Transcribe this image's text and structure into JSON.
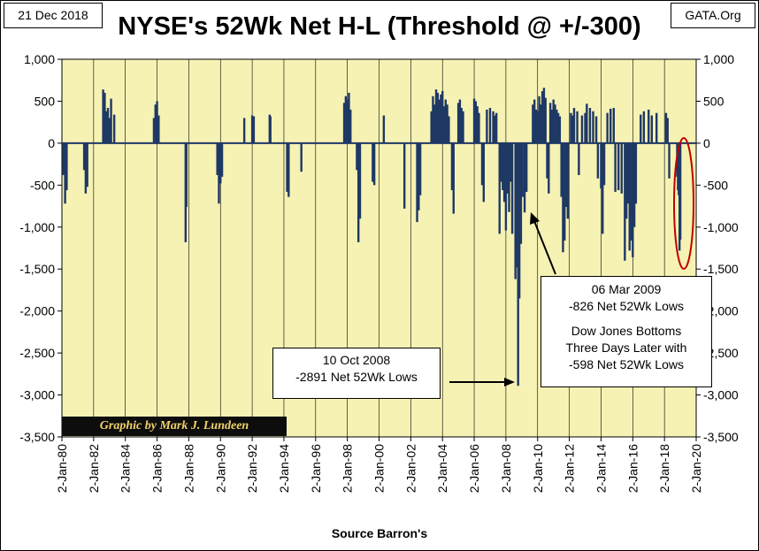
{
  "header": {
    "date": "21 Dec 2018",
    "source": "GATA.Org",
    "title": "NYSE's 52Wk Net H-L (Threshold @ +/-300)"
  },
  "credit": "Graphic by Mark J. Lundeen",
  "annotations": {
    "oct_2008": {
      "line1": "10 Oct 2008",
      "line2": "-2891 Net 52Wk Lows"
    },
    "mar_2009": {
      "line1": "06 Mar 2009",
      "line2": "-826 Net 52Wk Lows",
      "line3": "Dow Jones Bottoms",
      "line4": "Three Days Later with",
      "line5": "-598 Net 52Wk Lows"
    }
  },
  "colors": {
    "plot_bg": "#f6f2b4",
    "bar": "#1f3864",
    "highlight": "#c00000"
  },
  "chart_data": {
    "type": "bar",
    "title": "NYSE's 52Wk Net H-L (Threshold @ +/-300)",
    "xlabel": "Source Barron's",
    "ylabel": "",
    "xlim": [
      "2-Jan-80",
      "2-Jan-20"
    ],
    "ylim": [
      -3500,
      1000
    ],
    "grid": "vertical",
    "x_tick_labels": [
      "2-Jan-80",
      "2-Jan-82",
      "2-Jan-84",
      "2-Jan-86",
      "2-Jan-88",
      "2-Jan-90",
      "2-Jan-92",
      "2-Jan-94",
      "2-Jan-96",
      "2-Jan-98",
      "2-Jan-00",
      "2-Jan-02",
      "2-Jan-04",
      "2-Jan-06",
      "2-Jan-08",
      "2-Jan-10",
      "2-Jan-12",
      "2-Jan-14",
      "2-Jan-16",
      "2-Jan-18",
      "2-Jan-20"
    ],
    "y_tick_labels": [
      "1,000",
      "500",
      "0",
      "-500",
      "-1,000",
      "-1,500",
      "-2,000",
      "-2,500",
      "-3,000",
      "-3,500"
    ],
    "y_tick_values": [
      1000,
      500,
      0,
      -500,
      -1000,
      -1500,
      -2000,
      -2500,
      -3000,
      -3500
    ],
    "series": [
      {
        "values": [
          [
            1980.1,
            -380
          ],
          [
            1980.2,
            -720
          ],
          [
            1980.3,
            -560
          ],
          [
            1981.4,
            -320
          ],
          [
            1981.5,
            -600
          ],
          [
            1981.6,
            -520
          ],
          [
            1982.6,
            640
          ],
          [
            1982.7,
            600
          ],
          [
            1982.8,
            380
          ],
          [
            1982.9,
            420
          ],
          [
            1983.0,
            300
          ],
          [
            1983.1,
            530
          ],
          [
            1983.3,
            340
          ],
          [
            1985.8,
            300
          ],
          [
            1985.9,
            460
          ],
          [
            1986.0,
            500
          ],
          [
            1986.1,
            330
          ],
          [
            1987.8,
            -1180
          ],
          [
            1987.85,
            -760
          ],
          [
            1989.8,
            -380
          ],
          [
            1989.9,
            -720
          ],
          [
            1990.0,
            -480
          ],
          [
            1990.1,
            -400
          ],
          [
            1991.5,
            300
          ],
          [
            1992.0,
            330
          ],
          [
            1992.1,
            320
          ],
          [
            1993.1,
            340
          ],
          [
            1993.15,
            320
          ],
          [
            1994.2,
            -580
          ],
          [
            1994.3,
            -640
          ],
          [
            1995.1,
            -340
          ],
          [
            1997.8,
            480
          ],
          [
            1997.9,
            560
          ],
          [
            1998.0,
            520
          ],
          [
            1998.1,
            600
          ],
          [
            1998.2,
            400
          ],
          [
            1998.6,
            -320
          ],
          [
            1998.7,
            -1180
          ],
          [
            1998.8,
            -900
          ],
          [
            1999.6,
            -460
          ],
          [
            1999.7,
            -500
          ],
          [
            2000.3,
            330
          ],
          [
            2001.6,
            -780
          ],
          [
            2002.4,
            -940
          ],
          [
            2002.5,
            -800
          ],
          [
            2002.6,
            -620
          ],
          [
            2003.3,
            380
          ],
          [
            2003.4,
            560
          ],
          [
            2003.5,
            460
          ],
          [
            2003.6,
            640
          ],
          [
            2003.7,
            600
          ],
          [
            2003.8,
            520
          ],
          [
            2003.9,
            580
          ],
          [
            2004.0,
            620
          ],
          [
            2004.1,
            440
          ],
          [
            2004.2,
            520
          ],
          [
            2004.3,
            460
          ],
          [
            2004.4,
            320
          ],
          [
            2004.6,
            -560
          ],
          [
            2004.7,
            -840
          ],
          [
            2005.0,
            480
          ],
          [
            2005.1,
            520
          ],
          [
            2005.2,
            420
          ],
          [
            2005.3,
            380
          ],
          [
            2006.0,
            530
          ],
          [
            2006.1,
            500
          ],
          [
            2006.2,
            440
          ],
          [
            2006.3,
            360
          ],
          [
            2006.5,
            -500
          ],
          [
            2006.6,
            -700
          ],
          [
            2006.8,
            400
          ],
          [
            2007.0,
            420
          ],
          [
            2007.2,
            380
          ],
          [
            2007.3,
            330
          ],
          [
            2007.4,
            360
          ],
          [
            2007.6,
            -1080
          ],
          [
            2007.7,
            -460
          ],
          [
            2007.8,
            -560
          ],
          [
            2007.9,
            -700
          ],
          [
            2008.0,
            -1040
          ],
          [
            2008.1,
            -600
          ],
          [
            2008.2,
            -820
          ],
          [
            2008.3,
            -460
          ],
          [
            2008.4,
            -1080
          ],
          [
            2008.6,
            -1620
          ],
          [
            2008.7,
            -1480
          ],
          [
            2008.77,
            -2891
          ],
          [
            2008.85,
            -1850
          ],
          [
            2008.95,
            -1200
          ],
          [
            2009.05,
            -640
          ],
          [
            2009.18,
            -826
          ],
          [
            2009.3,
            -580
          ],
          [
            2009.7,
            460
          ],
          [
            2009.8,
            520
          ],
          [
            2009.9,
            400
          ],
          [
            2010.0,
            380
          ],
          [
            2010.1,
            560
          ],
          [
            2010.2,
            460
          ],
          [
            2010.3,
            620
          ],
          [
            2010.4,
            660
          ],
          [
            2010.5,
            540
          ],
          [
            2010.6,
            -420
          ],
          [
            2010.7,
            -600
          ],
          [
            2010.8,
            480
          ],
          [
            2010.9,
            400
          ],
          [
            2011.0,
            520
          ],
          [
            2011.1,
            460
          ],
          [
            2011.2,
            400
          ],
          [
            2011.3,
            360
          ],
          [
            2011.4,
            320
          ],
          [
            2011.5,
            -640
          ],
          [
            2011.6,
            -1300
          ],
          [
            2011.7,
            -1160
          ],
          [
            2011.8,
            -760
          ],
          [
            2011.9,
            -900
          ],
          [
            2012.1,
            360
          ],
          [
            2012.2,
            330
          ],
          [
            2012.3,
            420
          ],
          [
            2012.5,
            380
          ],
          [
            2012.6,
            -380
          ],
          [
            2012.8,
            330
          ],
          [
            2013.0,
            360
          ],
          [
            2013.1,
            470
          ],
          [
            2013.3,
            420
          ],
          [
            2013.5,
            380
          ],
          [
            2013.7,
            320
          ],
          [
            2013.8,
            -420
          ],
          [
            2014.0,
            -540
          ],
          [
            2014.1,
            -1080
          ],
          [
            2014.2,
            -500
          ],
          [
            2014.4,
            360
          ],
          [
            2014.6,
            410
          ],
          [
            2014.8,
            420
          ],
          [
            2014.9,
            -580
          ],
          [
            2015.1,
            -560
          ],
          [
            2015.3,
            -600
          ],
          [
            2015.5,
            -1400
          ],
          [
            2015.6,
            -900
          ],
          [
            2015.7,
            -720
          ],
          [
            2015.8,
            -1280
          ],
          [
            2015.9,
            -1160
          ],
          [
            2016.0,
            -1360
          ],
          [
            2016.1,
            -1000
          ],
          [
            2016.2,
            -720
          ],
          [
            2016.5,
            340
          ],
          [
            2016.7,
            380
          ],
          [
            2017.0,
            400
          ],
          [
            2017.2,
            330
          ],
          [
            2017.5,
            360
          ],
          [
            2018.1,
            360
          ],
          [
            2018.2,
            300
          ],
          [
            2018.3,
            -420
          ],
          [
            2018.8,
            -400
          ],
          [
            2018.85,
            -560
          ],
          [
            2018.9,
            -620
          ],
          [
            2018.95,
            -1280
          ],
          [
            2019.0,
            -1150
          ]
        ]
      }
    ]
  }
}
